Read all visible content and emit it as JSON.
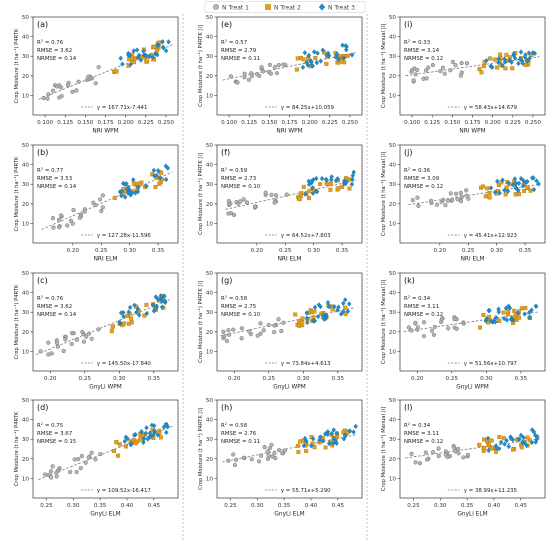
{
  "figure": {
    "legend": [
      {
        "label": "N Treat 1",
        "marker": "circle",
        "color": "#b0b0b0"
      },
      {
        "label": "N Treat 2",
        "marker": "square",
        "color": "#e3a020"
      },
      {
        "label": "N Treat 3",
        "marker": "diamond",
        "color": "#1f8fd0"
      }
    ],
    "trend_color": "#777777"
  },
  "chart_data": [
    {
      "type": "scatter",
      "panel": "(a)",
      "stats": {
        "r2": "0.76",
        "rmse": "3.62",
        "nrmse": "0.14"
      },
      "equation": "y = 167.71x-7.441",
      "slope": 167.71,
      "intercept": -7.441,
      "ylabel": "Crop Moisture (t ha⁻¹) P4RTK",
      "xlabel": "NRI WPM",
      "xlim": [
        0.085,
        0.265
      ],
      "xticks": [
        0.1,
        0.125,
        0.15,
        0.175,
        0.2,
        0.225,
        0.25
      ],
      "xtick_labels": [
        "0.100",
        "0.125",
        "0.150",
        "0.175",
        "0.200",
        "0.225",
        "0.250"
      ],
      "ylim": [
        0,
        50
      ],
      "yticks": [
        10,
        20,
        30,
        40,
        50
      ],
      "x_span": [
        0.092,
        0.258
      ],
      "seed": 11
    },
    {
      "type": "scatter",
      "panel": "(e)",
      "stats": {
        "r2": "0.57",
        "rmse": "2.79",
        "nrmse": "0.11"
      },
      "equation": "y = 84.25x+10.059",
      "slope": 84.25,
      "intercept": 10.059,
      "ylabel": "Crop Moisture (t ha⁻¹) P4RTK [i]",
      "xlabel": "NRI WPM",
      "xlim": [
        0.085,
        0.265
      ],
      "xticks": [
        0.1,
        0.125,
        0.15,
        0.175,
        0.2,
        0.225,
        0.25
      ],
      "xtick_labels": [
        "0.100",
        "0.125",
        "0.150",
        "0.175",
        "0.200",
        "0.225",
        "0.250"
      ],
      "ylim": [
        0,
        50
      ],
      "yticks": [
        10,
        20,
        30,
        40,
        50
      ],
      "x_span": [
        0.092,
        0.258
      ],
      "seed": 12
    },
    {
      "type": "scatter",
      "panel": "(i)",
      "stats": {
        "r2": "0.33",
        "rmse": "3.14",
        "nrmse": "0.12"
      },
      "equation": "y = 58.43x+14.679",
      "slope": 58.43,
      "intercept": 14.679,
      "ylabel": "Crop Moisture (t ha⁻¹) Manual [i]",
      "xlabel": "NRI WPM",
      "xlim": [
        0.085,
        0.265
      ],
      "xticks": [
        0.1,
        0.125,
        0.15,
        0.175,
        0.2,
        0.225,
        0.25
      ],
      "xtick_labels": [
        "0.100",
        "0.125",
        "0.150",
        "0.175",
        "0.200",
        "0.225",
        "0.250"
      ],
      "ylim": [
        0,
        50
      ],
      "yticks": [
        10,
        20,
        30,
        40,
        50
      ],
      "x_span": [
        0.092,
        0.258
      ],
      "seed": 13
    },
    {
      "type": "scatter",
      "panel": "(b)",
      "stats": {
        "r2": "0.77",
        "rmse": "3.53",
        "nrmse": "0.14"
      },
      "equation": "y = 127.28x-11.596",
      "slope": 127.28,
      "intercept": -11.596,
      "ylabel": "Crop Moisture (t ha⁻¹) P4RTK",
      "xlabel": "NRI ELM",
      "xlim": [
        0.13,
        0.385
      ],
      "xticks": [
        0.2,
        0.25,
        0.3,
        0.35
      ],
      "xtick_labels": [
        "0.20",
        "0.25",
        "0.30",
        "0.35"
      ],
      "ylim": [
        0,
        50
      ],
      "yticks": [
        10,
        20,
        30,
        40,
        50
      ],
      "x_span": [
        0.145,
        0.375
      ],
      "seed": 21
    },
    {
      "type": "scatter",
      "panel": "(f)",
      "stats": {
        "r2": "0.59",
        "rmse": "2.73",
        "nrmse": "0.10"
      },
      "equation": "y = 64.52x+7.803",
      "slope": 64.52,
      "intercept": 7.803,
      "ylabel": "Crop Moisture (t ha⁻¹) P4RTK [i]",
      "xlabel": "NRI ELM",
      "xlim": [
        0.13,
        0.385
      ],
      "xticks": [
        0.2,
        0.25,
        0.3,
        0.35
      ],
      "xtick_labels": [
        "0.20",
        "0.25",
        "0.30",
        "0.35"
      ],
      "ylim": [
        0,
        50
      ],
      "yticks": [
        10,
        20,
        30,
        40,
        50
      ],
      "x_span": [
        0.145,
        0.375
      ],
      "seed": 22
    },
    {
      "type": "scatter",
      "panel": "(j)",
      "stats": {
        "r2": "0.36",
        "rmse": "3.09",
        "nrmse": "0.12"
      },
      "equation": "y = 45.41x+12.923",
      "slope": 45.41,
      "intercept": 12.923,
      "ylabel": "Crop Moisture (t ha⁻¹) Manual [i]",
      "xlabel": "NRI ELM",
      "xlim": [
        0.13,
        0.385
      ],
      "xticks": [
        0.2,
        0.25,
        0.3,
        0.35
      ],
      "xtick_labels": [
        "0.20",
        "0.25",
        "0.30",
        "0.35"
      ],
      "ylim": [
        0,
        50
      ],
      "yticks": [
        10,
        20,
        30,
        40,
        50
      ],
      "x_span": [
        0.145,
        0.375
      ],
      "seed": 23
    },
    {
      "type": "scatter",
      "panel": "(c)",
      "stats": {
        "r2": "0.76",
        "rmse": "3.62",
        "nrmse": "0.14"
      },
      "equation": "y = 145.50x-17.840",
      "slope": 145.5,
      "intercept": -17.84,
      "ylabel": "Crop Moisture (t ha⁻¹) P4RTK",
      "xlabel": "GnyLi WPM",
      "xlim": [
        0.175,
        0.385
      ],
      "xticks": [
        0.2,
        0.25,
        0.3,
        0.35
      ],
      "xtick_labels": [
        "0.20",
        "0.25",
        "0.30",
        "0.35"
      ],
      "ylim": [
        0,
        50
      ],
      "yticks": [
        10,
        20,
        30,
        40,
        50
      ],
      "x_span": [
        0.18,
        0.375
      ],
      "seed": 31
    },
    {
      "type": "scatter",
      "panel": "(g)",
      "stats": {
        "r2": "0.58",
        "rmse": "2.75",
        "nrmse": "0.10"
      },
      "equation": "y = 73.84x+4.613",
      "slope": 73.84,
      "intercept": 4.613,
      "ylabel": "Crop Moisture (t ha⁻¹) P4RTK [i]",
      "xlabel": "GnyLi WPM",
      "xlim": [
        0.175,
        0.385
      ],
      "xticks": [
        0.2,
        0.25,
        0.3,
        0.35
      ],
      "xtick_labels": [
        "0.20",
        "0.25",
        "0.30",
        "0.35"
      ],
      "ylim": [
        0,
        50
      ],
      "yticks": [
        10,
        20,
        30,
        40,
        50
      ],
      "x_span": [
        0.18,
        0.375
      ],
      "seed": 32
    },
    {
      "type": "scatter",
      "panel": "(k)",
      "stats": {
        "r2": "0.34",
        "rmse": "3.11",
        "nrmse": "0.12"
      },
      "equation": "y = 51.56x+10.797",
      "slope": 51.56,
      "intercept": 10.797,
      "ylabel": "Crop Moisture (t ha⁻¹) Manual [i]",
      "xlabel": "GnyLi WPM",
      "xlim": [
        0.175,
        0.385
      ],
      "xticks": [
        0.2,
        0.25,
        0.3,
        0.35
      ],
      "xtick_labels": [
        "0.20",
        "0.25",
        "0.30",
        "0.35"
      ],
      "ylim": [
        0,
        50
      ],
      "yticks": [
        10,
        20,
        30,
        40,
        50
      ],
      "x_span": [
        0.18,
        0.375
      ],
      "seed": 33
    },
    {
      "type": "scatter",
      "panel": "(d)",
      "stats": {
        "r2": "0.75",
        "rmse": "3.67",
        "nrmse": "0.15"
      },
      "equation": "y = 109.52x-16.417",
      "slope": 109.52,
      "intercept": -16.417,
      "ylabel": "Crop Moisture (t ha⁻¹) P4RTK",
      "xlabel": "GnyLi ELM",
      "xlim": [
        0.225,
        0.495
      ],
      "xticks": [
        0.25,
        0.3,
        0.35,
        0.4,
        0.45
      ],
      "xtick_labels": [
        "0.25",
        "0.30",
        "0.35",
        "0.40",
        "0.45"
      ],
      "ylim": [
        0,
        50
      ],
      "yticks": [
        10,
        20,
        30,
        40,
        50
      ],
      "x_span": [
        0.235,
        0.485
      ],
      "seed": 41
    },
    {
      "type": "scatter",
      "panel": "(h)",
      "stats": {
        "r2": "0.58",
        "rmse": "2.76",
        "nrmse": "0.11"
      },
      "equation": "y = 55.71x+5.290",
      "slope": 55.71,
      "intercept": 5.29,
      "ylabel": "Crop Moisture (t ha⁻¹) P4RTK [i]",
      "xlabel": "GnyLi ELM",
      "xlim": [
        0.225,
        0.495
      ],
      "xticks": [
        0.25,
        0.3,
        0.35,
        0.4,
        0.45
      ],
      "xtick_labels": [
        "0.25",
        "0.30",
        "0.35",
        "0.40",
        "0.45"
      ],
      "ylim": [
        0,
        50
      ],
      "yticks": [
        10,
        20,
        30,
        40,
        50
      ],
      "x_span": [
        0.235,
        0.485
      ],
      "seed": 42
    },
    {
      "type": "scatter",
      "panel": "(l)",
      "stats": {
        "r2": "0.34",
        "rmse": "3.11",
        "nrmse": "0.12"
      },
      "equation": "y = 38.99x+11.235",
      "slope": 38.99,
      "intercept": 11.235,
      "ylabel": "Crop Moisture (t ha⁻¹) Manual [i]",
      "xlabel": "GnyLi ELM",
      "xlim": [
        0.225,
        0.495
      ],
      "xticks": [
        0.25,
        0.3,
        0.35,
        0.4,
        0.45
      ],
      "xtick_labels": [
        "0.25",
        "0.30",
        "0.35",
        "0.40",
        "0.45"
      ],
      "ylim": [
        0,
        50
      ],
      "yticks": [
        10,
        20,
        30,
        40,
        50
      ],
      "x_span": [
        0.235,
        0.485
      ],
      "seed": 43
    }
  ]
}
